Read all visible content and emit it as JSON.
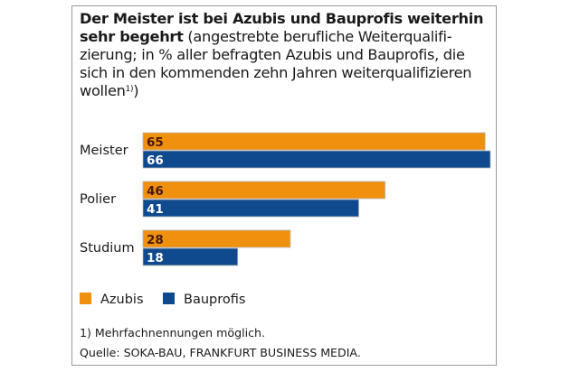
{
  "chart_data": {
    "type": "bar",
    "orientation": "horizontal",
    "title_bold": "Der Meister ist bei Azubis und Bauprofis weiterhin sehr begehrt",
    "title_rest": " (angestrebte berufliche Weiterqualifi­zierung; in % aller befragten Azubis und Bauprofis, die sich in den kommenden zehn Jahren weiter­qualifizieren wollen",
    "title_sup": "1)",
    "title_close": ")",
    "categories": [
      "Meister",
      "Polier",
      "Studium"
    ],
    "series": [
      {
        "name": "Azubis",
        "color": "#f0900f",
        "label_color": "#4a1a00",
        "values": [
          65,
          46,
          28
        ]
      },
      {
        "name": "Bauprofis",
        "color": "#0f4a8e",
        "label_color": "#ffffff",
        "values": [
          66,
          41,
          18
        ]
      }
    ],
    "xlim": [
      0,
      66
    ],
    "xlabel": "",
    "ylabel": "",
    "unit": "%",
    "grid": false,
    "legend": "bottom-left",
    "footnote": "1)  Mehrfachnennungen möglich.",
    "source": "Quelle: SOKA-BAU, FRANKFURT BUSINESS MEDIA."
  }
}
